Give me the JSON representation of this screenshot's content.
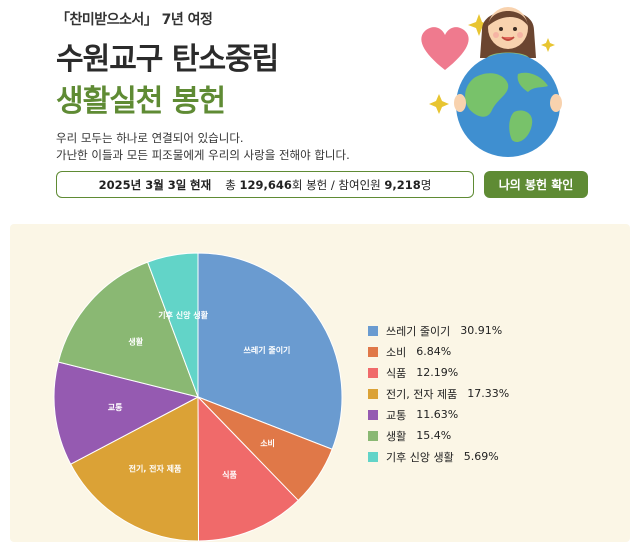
{
  "header": {
    "top_label": "「찬미받으소서」 7년 여정",
    "title_line1": "수원교구 탄소중립",
    "title_line2": "생활실천 봉헌",
    "desc_line1": "우리 모두는 하나로 연결되어 있습니다.",
    "desc_line2": "가난한 이들과 모든 피조물에게 우리의 사랑을 전해야 합니다."
  },
  "status": {
    "date": "2025년 3월 3일",
    "now_label": "현재",
    "total_prefix": "총",
    "total_count": "129,646",
    "total_suffix": "회 봉헌 / 참여인원",
    "participants": "9,218",
    "participants_suffix": "명"
  },
  "my_button": "나의 봉헌 확인",
  "colors": {
    "accent": "#5f8b34",
    "panel_bg": "#fbf6e6"
  },
  "chart_data": {
    "type": "pie",
    "start_angle_deg": 0,
    "direction": "clockwise",
    "legend_position": "right",
    "slices": [
      {
        "label": "쓰레기 줄이기",
        "value": 30.91,
        "value_text": "30.91%",
        "color": "#6a9bd0"
      },
      {
        "label": "소비",
        "value": 6.84,
        "value_text": "6.84%",
        "color": "#e07848"
      },
      {
        "label": "식품",
        "value": 12.19,
        "value_text": "12.19%",
        "color": "#f06a6a"
      },
      {
        "label": "전기, 전자 제품",
        "value": 17.33,
        "value_text": "17.33%",
        "color": "#dba236"
      },
      {
        "label": "교통",
        "value": 11.63,
        "value_text": "11.63%",
        "color": "#955ab1"
      },
      {
        "label": "생활",
        "value": 15.4,
        "value_text": "15.4%",
        "color": "#8ab873"
      },
      {
        "label": "기후 신앙 생활",
        "value": 5.69,
        "value_text": "5.69%",
        "color": "#62d4c8"
      }
    ]
  }
}
